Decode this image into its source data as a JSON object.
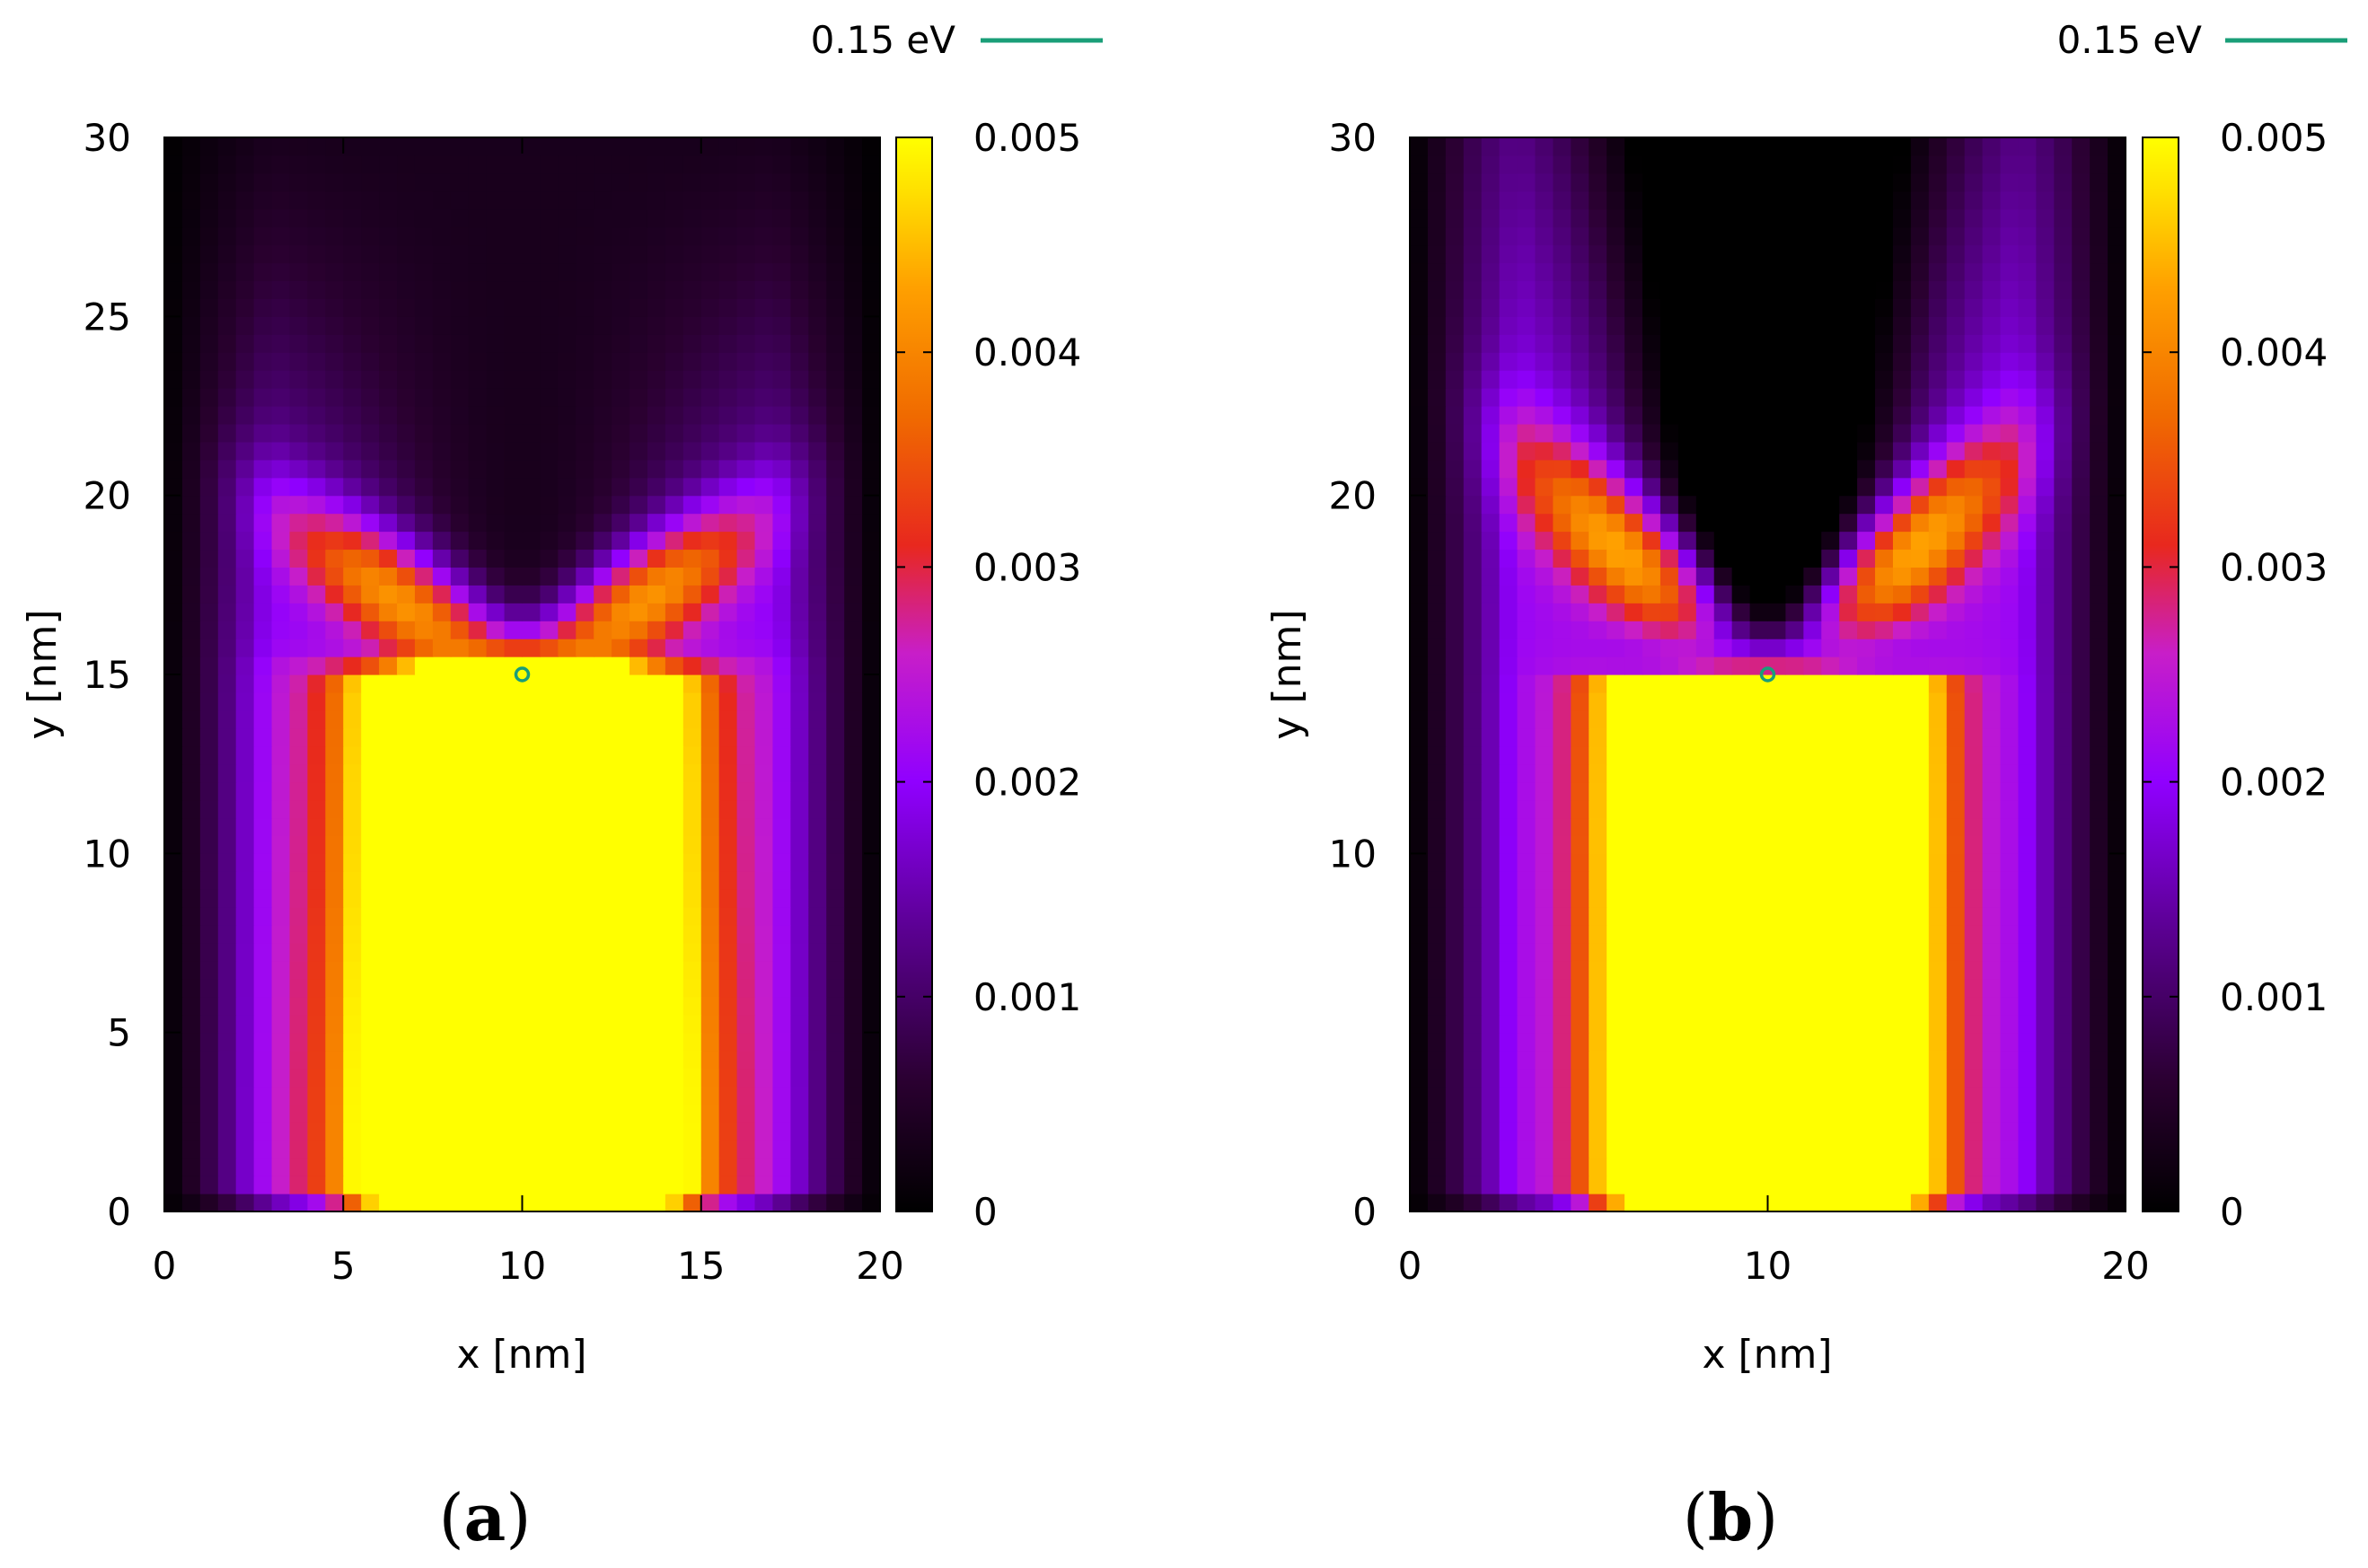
{
  "colors": {
    "marker": "#1a9e78",
    "axis": "#000000",
    "colormap": [
      "#000000",
      "#2a0030",
      "#5a0090",
      "#9000ff",
      "#c81ec8",
      "#e8281e",
      "#f06a00",
      "#ffa000",
      "#ffe000",
      "#ffff00"
    ]
  },
  "chart_data": [
    {
      "type": "heatmap",
      "panel_label_open": "(",
      "panel_label_letter": "a",
      "panel_label_close": ")",
      "xlabel": "x [nm]",
      "ylabel": "y [nm]",
      "xlim": [
        0,
        20
      ],
      "ylim": [
        0,
        30
      ],
      "xticks": [
        "0",
        "5",
        "10",
        "15",
        "20"
      ],
      "xtick_values": [
        0,
        5,
        10,
        15,
        20
      ],
      "yticks": [
        "0",
        "5",
        "10",
        "15",
        "20",
        "25",
        "30"
      ],
      "ytick_values": [
        0,
        5,
        10,
        15,
        20,
        25,
        30
      ],
      "colorbar": {
        "range": [
          0,
          0.005
        ],
        "ticks": [
          "0",
          "0.001",
          "0.002",
          "0.003",
          "0.004",
          "0.005"
        ],
        "tick_values": [
          0,
          0.001,
          0.002,
          0.003,
          0.004,
          0.005
        ]
      },
      "legend": {
        "label": "0.15 eV",
        "position": "top-right"
      },
      "marker": {
        "x": 10,
        "y": 15
      },
      "grid": {
        "nx": 40,
        "ny": 60
      },
      "model": "a"
    },
    {
      "type": "heatmap",
      "panel_label_open": "(",
      "panel_label_letter": "b",
      "panel_label_close": ")",
      "xlabel": "x [nm]",
      "ylabel": "y [nm]",
      "xlim": [
        0,
        20
      ],
      "ylim": [
        0,
        30
      ],
      "xticks": [
        "0",
        "10",
        "20"
      ],
      "xtick_values": [
        0,
        10,
        20
      ],
      "yticks": [
        "0",
        "10",
        "20",
        "30"
      ],
      "ytick_values": [
        0,
        10,
        20,
        30
      ],
      "colorbar": {
        "range": [
          0,
          0.005
        ],
        "ticks": [
          "0",
          "0.001",
          "0.002",
          "0.003",
          "0.004",
          "0.005"
        ],
        "tick_values": [
          0,
          0.001,
          0.002,
          0.003,
          0.004,
          0.005
        ]
      },
      "legend": {
        "label": "0.15 eV",
        "position": "top-right"
      },
      "marker": {
        "x": 10,
        "y": 15
      },
      "grid": {
        "nx": 40,
        "ny": 60
      },
      "model": "b"
    }
  ]
}
